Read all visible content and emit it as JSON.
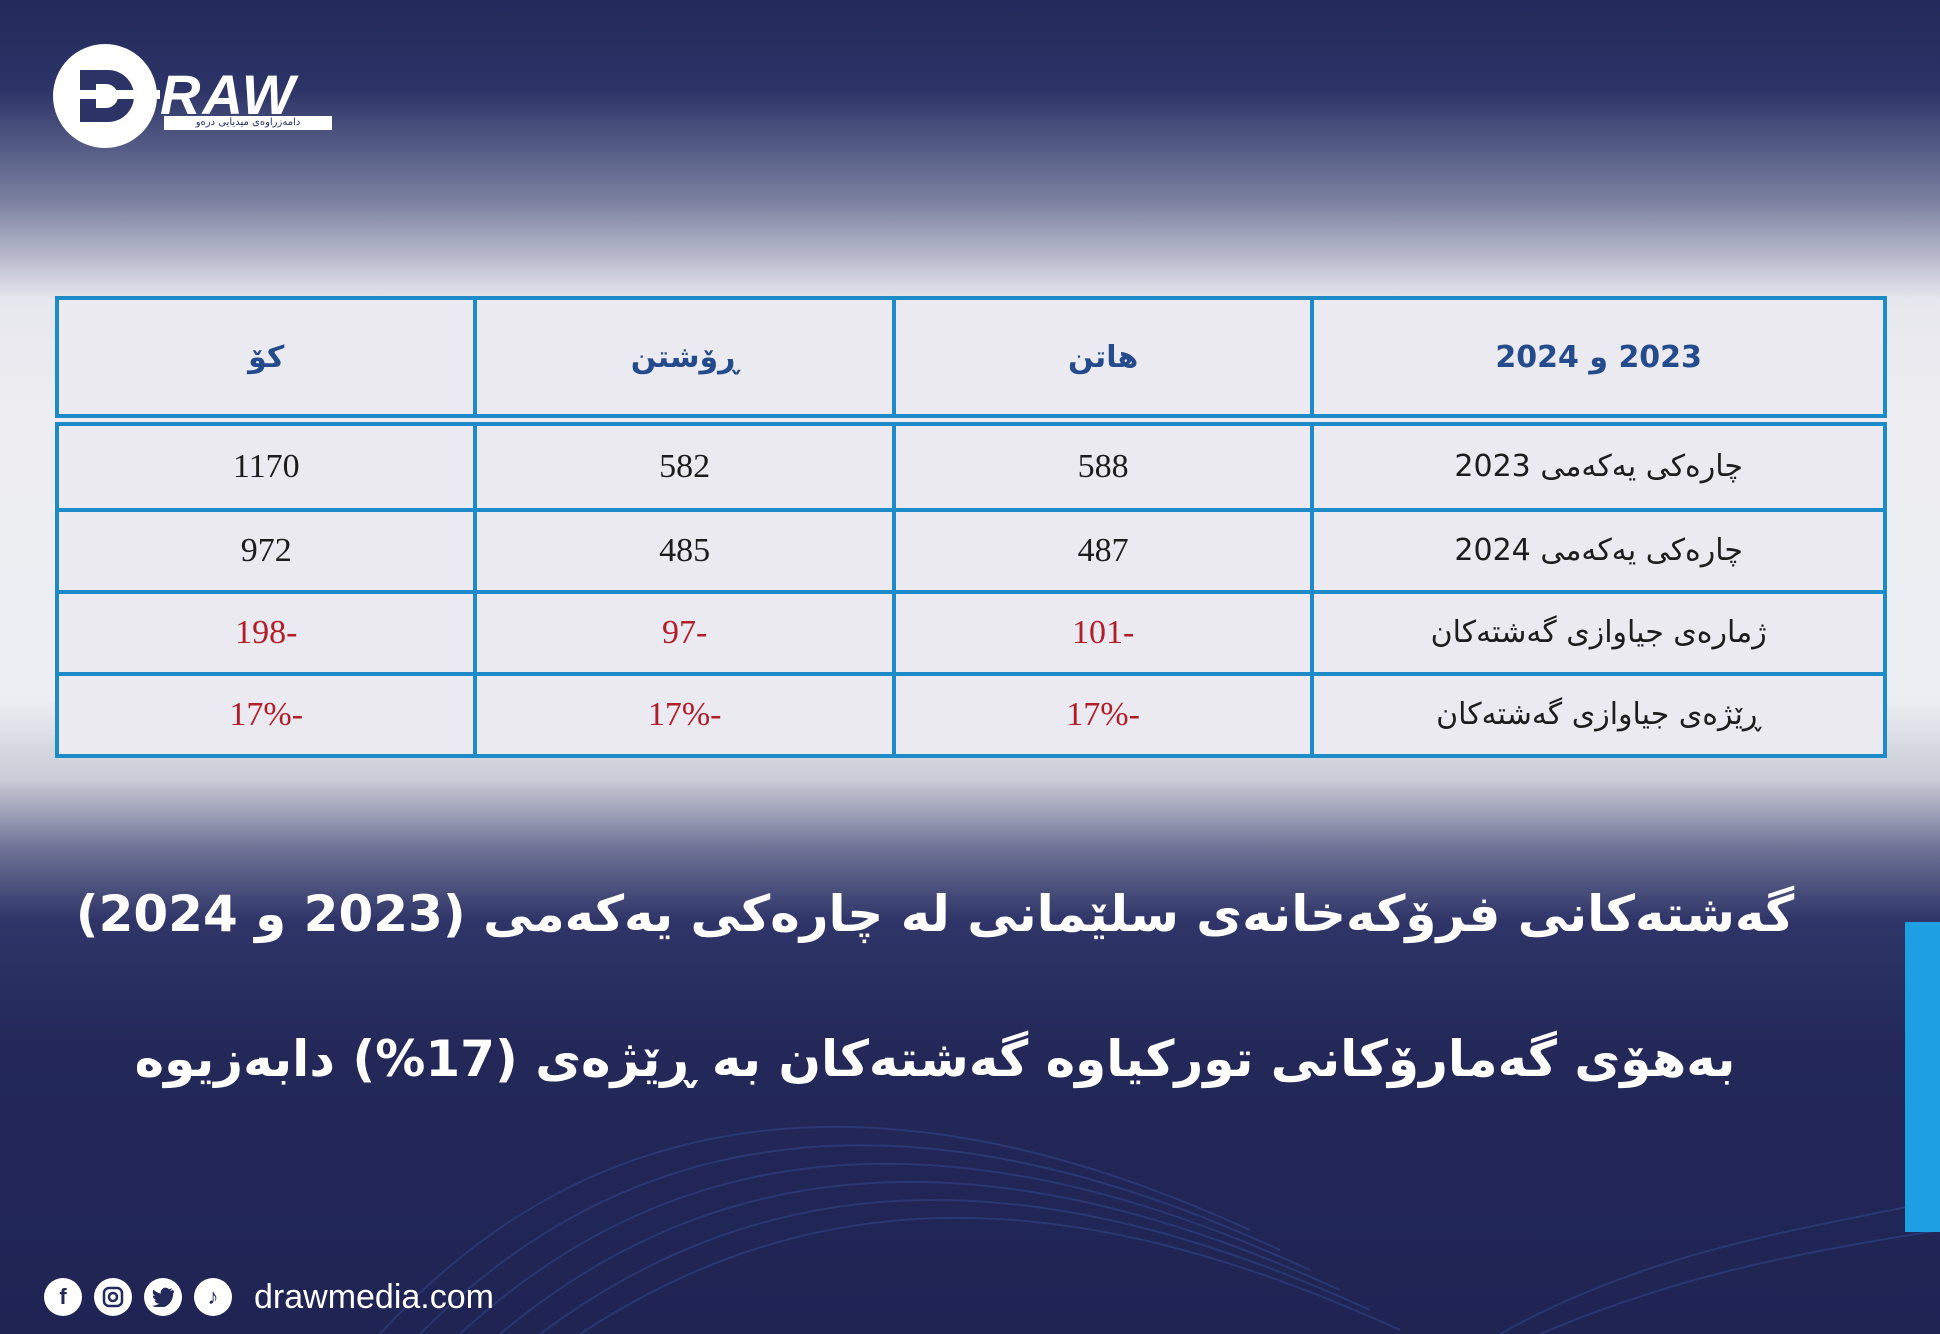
{
  "brand": {
    "name": "RAW",
    "tagline": "دامەزراوەی میدیایی درەو",
    "website": "drawmedia.com",
    "social_icons": [
      "facebook-icon",
      "instagram-icon",
      "twitter-icon",
      "tiktok-icon"
    ]
  },
  "colors": {
    "table_border": "#1e8bc9",
    "negative_value": "#b01e2a",
    "header_text": "#244b8c",
    "accent_bar": "#1e9fe2"
  },
  "table": {
    "headers": [
      "2023 و 2024",
      "هاتن",
      "ڕۆشتن",
      "کۆ"
    ],
    "rows": [
      {
        "label": "چارەکی یەکەمی 2023",
        "arrivals": "588",
        "departures": "582",
        "total": "1170"
      },
      {
        "label": "چارەکی یەکەمی 2024",
        "arrivals": "487",
        "departures": "485",
        "total": "972"
      },
      {
        "label": "ژمارەی جیاوازی گەشتەکان",
        "arrivals": "-101",
        "departures": "-97",
        "total": "-198"
      },
      {
        "label": "ڕێژەی جیاوازی گەشتەکان",
        "arrivals": "-17%",
        "departures": "-17%",
        "total": "-17%"
      }
    ]
  },
  "headline": {
    "line1": "گەشتەکانی فرۆکەخانەی سلێمانی لە چارەکی یەکەمی (2023 و 2024)",
    "line2": "بەهۆی گەمارۆکانی تورکیاوە گەشتەکان بە ڕێژەی (17%) دابەزیوە"
  }
}
